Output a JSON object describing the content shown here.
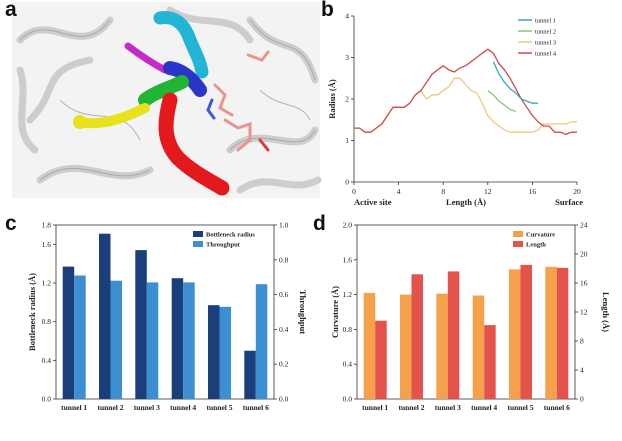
{
  "figure": {
    "panel_labels": [
      "a",
      "b",
      "c",
      "d"
    ]
  },
  "chart_data": [
    {
      "panel": "a",
      "type": "other",
      "colors": {
        "tunnel_1": "#22b5d6",
        "tunnel_2": "#2b35c8",
        "tunnel_3": "#c62bc9",
        "tunnel_4": "#22b534",
        "tunnel_5": "#e8e21b",
        "tunnel_6": "#e3191b",
        "ligand": "#e8958e"
      }
    },
    {
      "panel": "b",
      "type": "line",
      "xlabel": "Length (Å)",
      "ylabel": "Radius (Å)",
      "x_start_label": "Active site",
      "x_end_label": "Surface",
      "xlim": [
        0,
        20
      ],
      "ylim": [
        0,
        4
      ],
      "xticks": [
        "0",
        "4",
        "8",
        "12",
        "16",
        "20"
      ],
      "yticks": [
        "0",
        "1",
        "2",
        "3",
        "4"
      ],
      "legend_position": "top-right",
      "series": [
        {
          "name": "tunnel 1",
          "color": "#3aa7b6",
          "x": [
            12.5,
            13,
            13.5,
            14,
            14.5,
            15,
            15.5,
            16,
            16.5
          ],
          "y": [
            2.9,
            2.6,
            2.4,
            2.25,
            2.15,
            2.0,
            1.95,
            1.9,
            1.9
          ]
        },
        {
          "name": "tunnel 2",
          "color": "#86c97c",
          "x": [
            12,
            12.5,
            13,
            13.5,
            14,
            14.5
          ],
          "y": [
            2.2,
            2.1,
            1.95,
            1.85,
            1.75,
            1.7
          ]
        },
        {
          "name": "tunnel 3",
          "color": "#f2c879",
          "x": [
            0,
            0.5,
            1,
            1.5,
            2,
            2.5,
            3,
            3.5,
            4,
            4.5,
            5,
            5.5,
            6,
            6.5,
            7,
            7.5,
            8,
            8.5,
            9,
            9.5,
            10,
            10.5,
            11,
            11.5,
            12,
            12.5,
            13,
            13.5,
            14,
            14.5,
            15,
            15.5,
            16,
            16.5,
            17,
            17.5,
            18,
            18.5,
            19,
            19.5,
            20
          ],
          "y": [
            1.3,
            1.3,
            1.2,
            1.2,
            1.3,
            1.4,
            1.6,
            1.8,
            1.8,
            1.8,
            1.9,
            2.1,
            2.2,
            2.0,
            2.1,
            2.1,
            2.2,
            2.3,
            2.5,
            2.5,
            2.35,
            2.2,
            2.15,
            1.9,
            1.6,
            1.45,
            1.35,
            1.25,
            1.2,
            1.2,
            1.2,
            1.2,
            1.2,
            1.25,
            1.4,
            1.4,
            1.4,
            1.4,
            1.4,
            1.45,
            1.45
          ]
        },
        {
          "name": "tunnel 4",
          "color": "#d14a4a",
          "x": [
            0,
            0.5,
            1,
            1.5,
            2,
            2.5,
            3,
            3.5,
            4,
            4.5,
            5,
            5.5,
            6,
            6.5,
            7,
            7.5,
            8,
            8.5,
            9,
            9.5,
            10,
            10.5,
            11,
            11.5,
            12,
            12.5,
            13,
            13.5,
            14,
            14.5,
            15,
            15.5,
            16,
            16.5,
            17,
            17.5,
            18,
            18.5,
            19,
            19.5,
            20
          ],
          "y": [
            1.3,
            1.3,
            1.2,
            1.2,
            1.3,
            1.4,
            1.6,
            1.8,
            1.8,
            1.8,
            1.9,
            2.1,
            2.2,
            2.4,
            2.6,
            2.7,
            2.8,
            2.7,
            2.65,
            2.75,
            2.8,
            2.9,
            3.0,
            3.1,
            3.2,
            3.1,
            2.85,
            2.7,
            2.5,
            2.25,
            2.0,
            1.8,
            1.6,
            1.45,
            1.35,
            1.35,
            1.2,
            1.2,
            1.15,
            1.2,
            1.2
          ]
        }
      ]
    },
    {
      "panel": "c",
      "type": "bar",
      "categories": [
        "tunnel 1",
        "tunnel 2",
        "tunnel 3",
        "tunnel 4",
        "tunnel 5",
        "tunnel 6"
      ],
      "ylabel": "Bottleneck radius (Å)",
      "y2label": "Throughput",
      "ylim": [
        0,
        1.8
      ],
      "y2lim": [
        0,
        1.0
      ],
      "yticks": [
        "0.0",
        "0.4",
        "0.8",
        "1.2",
        "1.6",
        "1.8"
      ],
      "y2ticks": [
        "0.0",
        "0.2",
        "0.4",
        "0.6",
        "0.8",
        "1.0"
      ],
      "legend_position": "top-right",
      "series": [
        {
          "name": "Bottleneck radius",
          "color": "#1b3f7a",
          "axis": "left",
          "values": [
            1.37,
            1.71,
            1.54,
            1.25,
            0.97,
            0.5
          ]
        },
        {
          "name": "Throughput",
          "color": "#3c8fd0",
          "axis": "right",
          "values": [
            0.71,
            0.68,
            0.67,
            0.67,
            0.53,
            0.66
          ]
        }
      ]
    },
    {
      "panel": "d",
      "type": "bar",
      "categories": [
        "tunnel 1",
        "tunnel 2",
        "tunnel 3",
        "tunnel 4",
        "tunnel 5",
        "tunnel 6"
      ],
      "ylabel": "Curvature (Å)",
      "y2label": "Length (Å)",
      "ylim": [
        0,
        2.0
      ],
      "y2lim": [
        0,
        24
      ],
      "yticks": [
        "0.0",
        "0.4",
        "0.8",
        "1.2",
        "1.6",
        "2.0"
      ],
      "y2ticks": [
        "0",
        "4",
        "8",
        "12",
        "16",
        "20",
        "24"
      ],
      "legend_position": "top-right",
      "series": [
        {
          "name": "Curvature",
          "color": "#f5a04a",
          "axis": "left",
          "values": [
            1.22,
            1.2,
            1.21,
            1.19,
            1.49,
            1.52
          ]
        },
        {
          "name": "Length",
          "color": "#e3534c",
          "axis": "right",
          "values": [
            10.8,
            17.2,
            17.6,
            10.2,
            18.5,
            18.1
          ]
        }
      ]
    }
  ]
}
